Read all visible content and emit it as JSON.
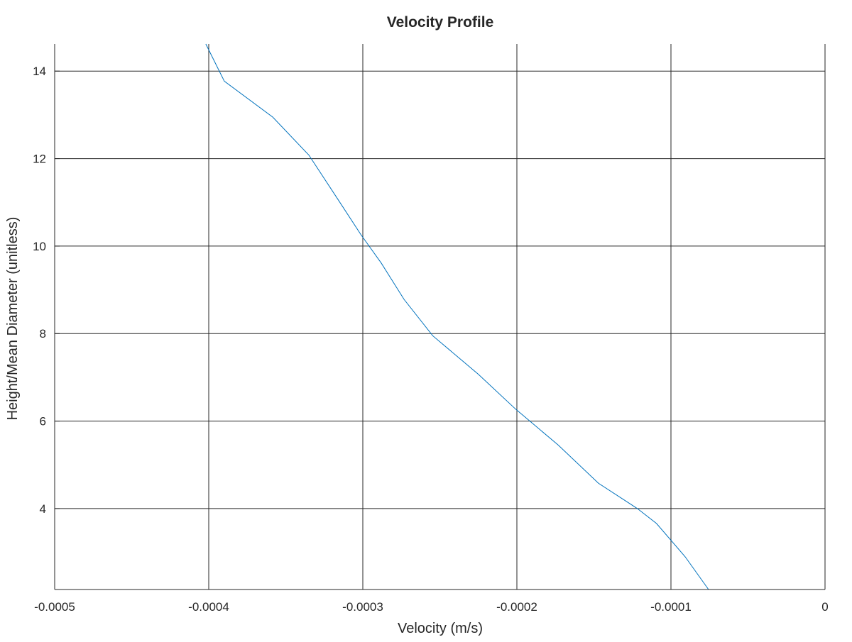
{
  "chart_data": {
    "type": "line",
    "title": "Velocity Profile",
    "xlabel": "Velocity (m/s)",
    "ylabel": "Height/Mean Diameter (unitless)",
    "xlim": [
      -0.0005,
      0
    ],
    "ylim": [
      2.15,
      14.62
    ],
    "xticks": [
      -0.0005,
      -0.0004,
      -0.0003,
      -0.0002,
      -0.0001,
      0
    ],
    "xtick_labels": [
      "-0.0005",
      "-0.0004",
      "-0.0003",
      "-0.0002",
      "-0.0001",
      "0"
    ],
    "yticks": [
      4,
      6,
      8,
      10,
      12,
      14
    ],
    "ytick_labels": [
      "4",
      "6",
      "8",
      "10",
      "12",
      "14"
    ],
    "grid": true,
    "series": [
      {
        "color": "#0072bd",
        "x": [
          -7.56e-05,
          -9.08e-05,
          -0.0001094,
          -0.0001218,
          -0.0001471,
          -0.0001731,
          -0.0002007,
          -0.000225,
          -0.0002546,
          -0.0002732,
          -0.000288,
          -0.0003012,
          -0.000316,
          -0.000335,
          -0.0003585,
          -0.0003899,
          -0.0004019
        ],
        "y": [
          2.15,
          2.9,
          3.66,
          4.0,
          4.58,
          5.45,
          6.27,
          7.07,
          7.95,
          8.78,
          9.61,
          10.26,
          11.06,
          12.08,
          12.95,
          13.77,
          14.62
        ]
      }
    ]
  }
}
